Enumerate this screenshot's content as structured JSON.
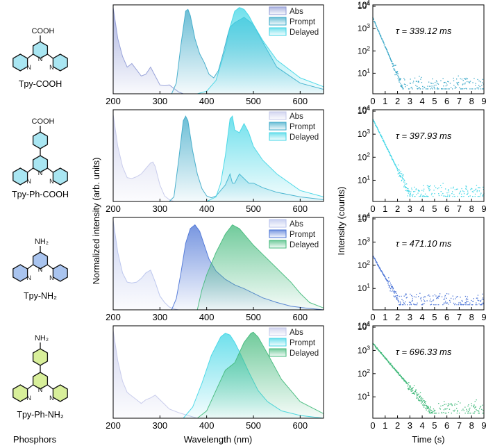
{
  "labels": {
    "phosphors": "Phosphors",
    "wavelength": "Wavelength (nm)",
    "time": "Time (s)",
    "spec_ylabel": "Normalized intensity (arb. units)",
    "decay_ylabel": "Intensity (counts)"
  },
  "colors": {
    "abs": "#8f9ad6",
    "teal": "#3aa8c8",
    "cyan": "#3fd6e6",
    "blue": "#4a73d6",
    "green": "#41b97a",
    "pyridine_blue": "#a9c4ef",
    "pyridine_green": "#d8ef9a",
    "pyridine_cyan": "#a9e6f2"
  },
  "chart_data": [
    {
      "type": "area",
      "molecule": "Tpy-COOH",
      "substituent": "COOH",
      "legend": [
        "Abs",
        "Prompt",
        "Delayed"
      ],
      "xlim": [
        200,
        650
      ],
      "xticks": [
        200,
        300,
        400,
        500,
        600
      ],
      "series": [
        {
          "name": "Abs",
          "x": [
            200,
            210,
            220,
            230,
            240,
            250,
            260,
            270,
            280,
            290,
            300,
            310,
            320,
            330,
            340,
            350
          ],
          "y": [
            0.97,
            0.62,
            0.42,
            0.3,
            0.34,
            0.27,
            0.2,
            0.22,
            0.3,
            0.2,
            0.1,
            0.09,
            0.1,
            0.06,
            0.02,
            0.0
          ]
        },
        {
          "name": "Prompt",
          "x": [
            325,
            335,
            345,
            355,
            360,
            365,
            375,
            385,
            395,
            405,
            415,
            425,
            435,
            445,
            450,
            460,
            480,
            500,
            520,
            550,
            600,
            650
          ],
          "y": [
            0.0,
            0.12,
            0.55,
            0.93,
            0.95,
            0.88,
            0.62,
            0.45,
            0.35,
            0.22,
            0.18,
            0.26,
            0.45,
            0.66,
            0.75,
            0.8,
            0.86,
            0.78,
            0.58,
            0.3,
            0.12,
            0.05
          ]
        },
        {
          "name": "Delayed",
          "x": [
            380,
            400,
            420,
            440,
            450,
            460,
            470,
            480,
            490,
            500,
            520,
            550,
            600,
            650
          ],
          "y": [
            0.0,
            0.03,
            0.15,
            0.5,
            0.75,
            0.93,
            0.97,
            0.95,
            0.88,
            0.78,
            0.6,
            0.38,
            0.18,
            0.08
          ]
        }
      ],
      "decay": {
        "tau_label": "τ = 339.12 ms",
        "xlim": [
          0,
          9
        ],
        "yticks": [
          10,
          100,
          1000,
          10000
        ],
        "y0": 3000,
        "tau_s": 0.339,
        "floor": 2,
        "noise_start_s": 1.6
      }
    },
    {
      "type": "area",
      "molecule": "Tpy-Ph-COOH",
      "substituent": "COOH",
      "legend": [
        "Abs",
        "Prompt",
        "Delayed"
      ],
      "xlim": [
        200,
        650
      ],
      "xticks": [
        200,
        300,
        400,
        500,
        600
      ],
      "series": [
        {
          "name": "Abs",
          "x": [
            200,
            210,
            220,
            230,
            240,
            250,
            260,
            270,
            280,
            285,
            290,
            300,
            310,
            320,
            330,
            340
          ],
          "y": [
            0.95,
            0.6,
            0.38,
            0.26,
            0.25,
            0.27,
            0.3,
            0.36,
            0.42,
            0.43,
            0.38,
            0.18,
            0.06,
            0.02,
            0.0,
            0.0
          ]
        },
        {
          "name": "Prompt",
          "x": [
            320,
            330,
            340,
            350,
            355,
            360,
            370,
            380,
            390,
            400,
            410,
            420,
            430,
            440,
            450,
            455,
            460,
            470,
            480,
            490,
            500,
            520,
            550,
            600,
            650
          ],
          "y": [
            0.0,
            0.05,
            0.45,
            0.88,
            0.93,
            0.88,
            0.55,
            0.3,
            0.14,
            0.06,
            0.04,
            0.06,
            0.12,
            0.18,
            0.3,
            0.2,
            0.2,
            0.3,
            0.25,
            0.2,
            0.2,
            0.15,
            0.1,
            0.05,
            0.02
          ]
        },
        {
          "name": "Delayed",
          "x": [
            400,
            420,
            430,
            440,
            450,
            455,
            460,
            470,
            480,
            490,
            500,
            520,
            550,
            600,
            650
          ],
          "y": [
            0.0,
            0.05,
            0.2,
            0.5,
            0.9,
            0.93,
            0.78,
            0.75,
            0.85,
            0.75,
            0.6,
            0.45,
            0.3,
            0.12,
            0.05
          ]
        }
      ],
      "decay": {
        "tau_label": "τ = 397.93 ms",
        "xlim": [
          0,
          9
        ],
        "yticks": [
          10,
          100,
          1000,
          10000
        ],
        "y0": 4500,
        "tau_s": 0.398,
        "floor": 2,
        "noise_start_s": 2.0
      }
    },
    {
      "type": "area",
      "molecule": "Tpy-NH2",
      "substituent": "NH2",
      "legend": [
        "Abs",
        "Prompt",
        "Delayed"
      ],
      "xlim": [
        200,
        650
      ],
      "xticks": [
        200,
        300,
        400,
        500,
        600
      ],
      "series": [
        {
          "name": "Abs",
          "x": [
            200,
            210,
            220,
            230,
            240,
            250,
            260,
            270,
            280,
            290,
            300,
            310,
            320,
            330,
            340
          ],
          "y": [
            0.97,
            0.62,
            0.4,
            0.3,
            0.29,
            0.3,
            0.34,
            0.4,
            0.43,
            0.3,
            0.15,
            0.08,
            0.03,
            0.01,
            0.0
          ]
        },
        {
          "name": "Prompt",
          "x": [
            325,
            335,
            345,
            355,
            365,
            375,
            385,
            395,
            405,
            420,
            440,
            460,
            480,
            500,
            520,
            550,
            580,
            610,
            650
          ],
          "y": [
            0.0,
            0.12,
            0.4,
            0.72,
            0.88,
            0.92,
            0.85,
            0.7,
            0.55,
            0.42,
            0.33,
            0.27,
            0.23,
            0.18,
            0.13,
            0.08,
            0.04,
            0.02,
            0.0
          ]
        },
        {
          "name": "Delayed",
          "x": [
            380,
            390,
            400,
            420,
            440,
            455,
            470,
            480,
            500,
            520,
            550,
            580,
            600,
            620,
            650
          ],
          "y": [
            0.0,
            0.22,
            0.38,
            0.62,
            0.82,
            0.92,
            0.88,
            0.82,
            0.7,
            0.6,
            0.45,
            0.3,
            0.18,
            0.08,
            0.02
          ]
        }
      ],
      "decay": {
        "tau_label": "τ = 471.10 ms",
        "xlim": [
          0,
          9
        ],
        "yticks": [
          10,
          100,
          1000,
          10000
        ],
        "y0": 250,
        "tau_s": 0.47,
        "floor": 2,
        "noise_start_s": 1.2
      }
    },
    {
      "type": "area",
      "molecule": "Tpy-Ph-NH2",
      "substituent": "NH2",
      "legend": [
        "Abs",
        "Prompt",
        "Delayed"
      ],
      "xlim": [
        200,
        650
      ],
      "xticks": [
        200,
        300,
        400,
        500,
        600
      ],
      "series": [
        {
          "name": "Abs",
          "x": [
            200,
            210,
            220,
            230,
            240,
            250,
            260,
            270,
            280,
            290,
            300,
            310,
            320,
            340,
            360,
            380
          ],
          "y": [
            0.95,
            0.62,
            0.4,
            0.28,
            0.24,
            0.2,
            0.16,
            0.2,
            0.22,
            0.25,
            0.2,
            0.15,
            0.1,
            0.06,
            0.03,
            0.0
          ]
        },
        {
          "name": "Prompt",
          "x": [
            350,
            370,
            390,
            410,
            430,
            440,
            450,
            460,
            470,
            490,
            510,
            530,
            560,
            600,
            650
          ],
          "y": [
            0.0,
            0.12,
            0.38,
            0.68,
            0.88,
            0.92,
            0.9,
            0.82,
            0.72,
            0.5,
            0.3,
            0.18,
            0.08,
            0.03,
            0.0
          ]
        },
        {
          "name": "Delayed",
          "x": [
            380,
            400,
            420,
            440,
            460,
            480,
            495,
            500,
            510,
            530,
            560,
            600,
            650
          ],
          "y": [
            0.0,
            0.08,
            0.3,
            0.52,
            0.6,
            0.82,
            0.92,
            0.93,
            0.88,
            0.7,
            0.42,
            0.18,
            0.05
          ]
        }
      ],
      "decay": {
        "tau_label": "τ = 696.33 ms",
        "xlim": [
          0,
          9
        ],
        "yticks": [
          10,
          100,
          1000,
          10000
        ],
        "y0": 2000,
        "tau_s": 0.696,
        "floor": 2,
        "noise_start_s": 2.8
      }
    }
  ]
}
